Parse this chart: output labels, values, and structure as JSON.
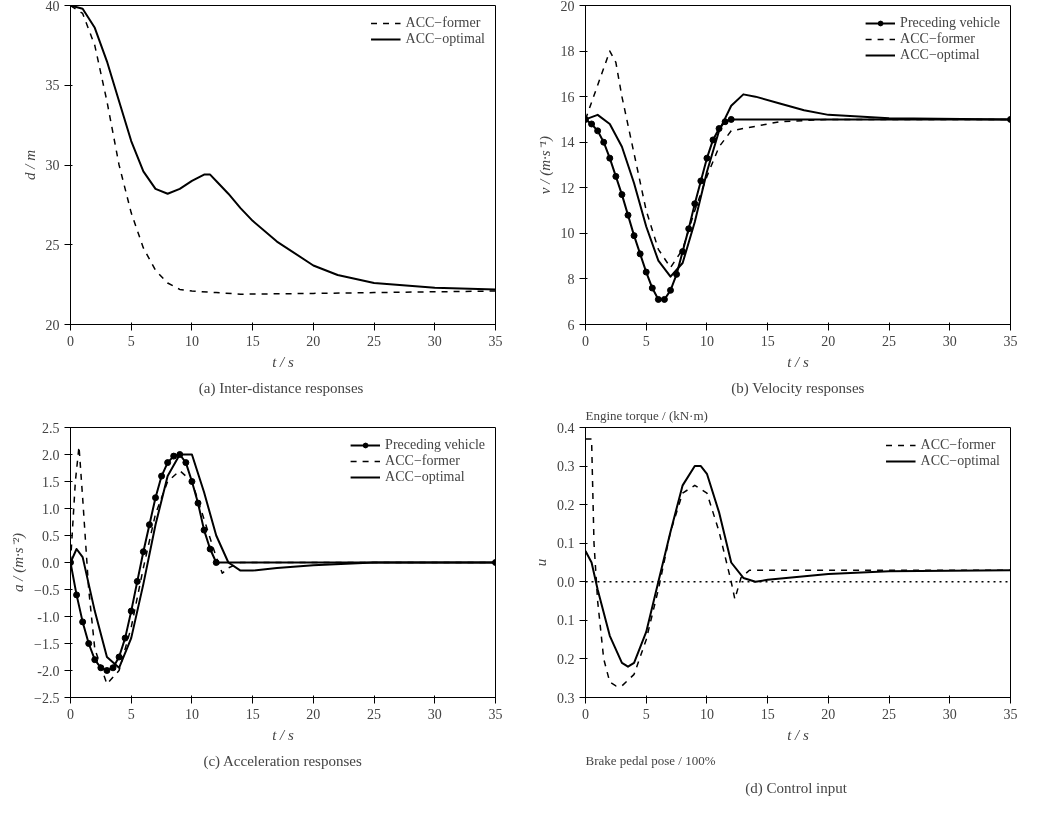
{
  "chart_data": [
    {
      "type": "line",
      "title": "(a)  Inter-distance responses",
      "xlabel": "t / s",
      "ylabel": "d / m",
      "xlim": [
        0,
        35
      ],
      "ylim": [
        20,
        40
      ],
      "xticks": [
        0,
        5,
        10,
        15,
        20,
        25,
        30,
        35
      ],
      "yticks": [
        20,
        25,
        30,
        35,
        40
      ],
      "legend": "top right",
      "grid": false,
      "series": [
        {
          "name": "ACC−former",
          "color": "#000000",
          "line_style": "dashed",
          "x": [
            0,
            1,
            2,
            3,
            4,
            5,
            6,
            7,
            8,
            9,
            10,
            12,
            14,
            20,
            25,
            30,
            35
          ],
          "values": [
            40,
            39.5,
            37.5,
            34,
            30,
            27,
            24.8,
            23.4,
            22.6,
            22.2,
            22.1,
            22,
            21.9,
            21.95,
            22,
            22.05,
            22.1
          ]
        },
        {
          "name": "ACC−optimal",
          "color": "#000000",
          "line_style": "solid",
          "x": [
            0,
            1,
            2,
            3,
            4,
            5,
            6,
            7,
            8,
            9,
            10,
            11,
            11.5,
            12,
            13,
            14,
            15,
            17,
            20,
            22,
            25,
            30,
            35
          ],
          "values": [
            40,
            39.8,
            38.6,
            36.5,
            34,
            31.5,
            29.6,
            28.5,
            28.2,
            28.5,
            29,
            29.4,
            29.4,
            29,
            28.2,
            27.3,
            26.5,
            25.2,
            23.7,
            23.1,
            22.6,
            22.3,
            22.2
          ]
        }
      ]
    },
    {
      "type": "line",
      "title": "(b) Velocity responses",
      "xlabel": "t / s",
      "ylabel": "v / (m·s⁻¹)",
      "xlim": [
        0,
        35
      ],
      "ylim": [
        6,
        20
      ],
      "xticks": [
        0,
        5,
        10,
        15,
        20,
        25,
        30,
        35
      ],
      "yticks": [
        6,
        8,
        10,
        12,
        14,
        16,
        18,
        20
      ],
      "legend": "top right",
      "grid": false,
      "series": [
        {
          "name": "Preceding vehicle",
          "color": "#000000",
          "line_style": "solid",
          "marker": "circle",
          "x": [
            0,
            0.5,
            1,
            1.5,
            2,
            2.5,
            3,
            3.5,
            4,
            4.5,
            5,
            5.5,
            6,
            6.5,
            7,
            7.5,
            8,
            8.5,
            9,
            9.5,
            10,
            10.5,
            11,
            11.5,
            12,
            35
          ],
          "values": [
            15,
            14.8,
            14.5,
            14,
            13.3,
            12.5,
            11.7,
            10.8,
            9.9,
            9.1,
            8.3,
            7.6,
            7.1,
            7.1,
            7.5,
            8.2,
            9.2,
            10.2,
            11.3,
            12.3,
            13.3,
            14.1,
            14.6,
            14.9,
            15,
            15
          ]
        },
        {
          "name": "ACC−former",
          "color": "#000000",
          "line_style": "dashed",
          "x": [
            0,
            1,
            2,
            2.5,
            3,
            4,
            5,
            6,
            7,
            8,
            9,
            10,
            11,
            12,
            14,
            16,
            20,
            35
          ],
          "values": [
            15,
            16.5,
            18,
            17.5,
            16,
            13.5,
            11,
            9.3,
            8.5,
            9.3,
            11,
            12.5,
            13.8,
            14.5,
            14.7,
            14.9,
            15,
            15
          ]
        },
        {
          "name": "ACC−optimal",
          "color": "#000000",
          "line_style": "solid",
          "x": [
            0,
            1,
            2,
            3,
            4,
            5,
            6,
            7,
            8,
            9,
            10,
            11,
            12,
            13,
            14,
            16,
            18,
            20,
            25,
            35
          ],
          "values": [
            15,
            15.2,
            14.8,
            13.8,
            12.2,
            10.3,
            8.8,
            8.1,
            8.7,
            10.5,
            12.7,
            14.5,
            15.6,
            16.1,
            16,
            15.7,
            15.4,
            15.2,
            15.05,
            15
          ]
        }
      ]
    },
    {
      "type": "line",
      "title": "(c) Acceleration responses",
      "xlabel": "t / s",
      "ylabel": "a / (m·s⁻²)",
      "xlim": [
        0,
        35
      ],
      "ylim": [
        -2.5,
        2.5
      ],
      "xticks": [
        0,
        5,
        10,
        15,
        20,
        25,
        30,
        35
      ],
      "yticks": [
        -2.5,
        {
          "value": -2,
          "label": "-2.0"
        },
        -1.5,
        {
          "value": -1,
          "label": "-1.0"
        },
        -0.5,
        {
          "value": 0,
          "label": "0.0"
        },
        0.5,
        {
          "value": 1,
          "label": "1.0"
        },
        1.5,
        {
          "value": 2,
          "label": "2.0"
        },
        2.5
      ],
      "legend": "top right",
      "grid": false,
      "series": [
        {
          "name": "Preceding vehicle",
          "color": "#000000",
          "line_style": "solid",
          "marker": "circle",
          "x": [
            0,
            0.5,
            1,
            1.5,
            2,
            2.5,
            3,
            3.5,
            4,
            4.5,
            5,
            5.5,
            6,
            6.5,
            7,
            7.5,
            8,
            8.5,
            9,
            9.5,
            10,
            10.5,
            11,
            11.5,
            12,
            35
          ],
          "values": [
            0,
            -0.6,
            -1.1,
            -1.5,
            -1.8,
            -1.95,
            -2,
            -1.95,
            -1.75,
            -1.4,
            -0.9,
            -0.35,
            0.2,
            0.7,
            1.2,
            1.6,
            1.85,
            1.97,
            2,
            1.85,
            1.5,
            1.1,
            0.6,
            0.25,
            0,
            0
          ]
        },
        {
          "name": "ACC−former",
          "color": "#000000",
          "line_style": "dashed",
          "x": [
            0,
            0.4,
            0.7,
            1,
            1.5,
            2,
            3,
            4,
            5,
            6,
            7,
            8,
            9,
            10,
            11,
            12,
            12.5,
            13,
            14,
            35
          ],
          "values": [
            0,
            1.5,
            2.15,
            1.2,
            -0.5,
            -1.6,
            -2.25,
            -2,
            -1.2,
            -0.1,
            0.9,
            1.5,
            1.7,
            1.5,
            0.8,
            0.1,
            -0.2,
            -0.1,
            0,
            0
          ]
        },
        {
          "name": "ACC−optimal",
          "color": "#000000",
          "line_style": "solid",
          "x": [
            0,
            0.5,
            1,
            2,
            3,
            4,
            5,
            6,
            7,
            8,
            9,
            10,
            11,
            12,
            13,
            14,
            15,
            17,
            20,
            25,
            35
          ],
          "values": [
            0,
            0.25,
            0.1,
            -0.9,
            -1.75,
            -1.95,
            -1.4,
            -0.4,
            0.7,
            1.6,
            2,
            2,
            1.3,
            0.5,
            0,
            -0.15,
            -0.15,
            -0.1,
            -0.05,
            0,
            0
          ]
        }
      ]
    },
    {
      "type": "line",
      "title": "(d)  Control input",
      "xlabel": "t / s",
      "ylabel": "u",
      "xlim": [
        0,
        35
      ],
      "ylim": [
        -0.3,
        0.4
      ],
      "xticks": [
        0,
        5,
        10,
        15,
        20,
        25,
        30,
        35
      ],
      "yticks": [
        {
          "value": -0.3,
          "label": "0.3"
        },
        {
          "value": -0.2,
          "label": "0.2"
        },
        {
          "value": -0.1,
          "label": "0.1"
        },
        {
          "value": 0,
          "label": "0.0"
        },
        0.1,
        0.2,
        0.3,
        0.4
      ],
      "legend": "top right",
      "grid": false,
      "annotations": [
        "Engine torque / (kN·m)",
        "Brake pedal pose / 100%"
      ],
      "ref_lines": [
        {
          "axis": "y",
          "value": 0,
          "color": "#000000",
          "line_style": "dotted"
        }
      ],
      "series": [
        {
          "name": "ACC−former",
          "color": "#000000",
          "line_style": "dashed",
          "x": [
            0,
            0.5,
            0.7,
            1,
            1.5,
            2,
            2.5,
            3,
            4,
            5,
            6,
            7,
            8,
            9,
            10,
            11,
            12,
            12.3,
            12.8,
            13.5,
            35
          ],
          "values": [
            0.37,
            0.37,
            0.1,
            -0.05,
            -0.2,
            -0.26,
            -0.27,
            -0.27,
            -0.24,
            -0.15,
            -0.02,
            0.13,
            0.23,
            0.25,
            0.23,
            0.13,
            0,
            -0.045,
            0.01,
            0.03,
            0.03
          ]
        },
        {
          "name": "ACC−optimal",
          "color": "#000000",
          "line_style": "solid",
          "x": [
            0,
            0.5,
            1,
            2,
            3,
            3.5,
            4,
            5,
            6,
            7,
            8,
            9,
            9.5,
            10,
            11,
            12,
            13,
            14,
            15,
            20,
            25,
            35
          ],
          "values": [
            0.08,
            0.05,
            -0.02,
            -0.14,
            -0.21,
            -0.22,
            -0.21,
            -0.13,
            0,
            0.13,
            0.25,
            0.3,
            0.3,
            0.28,
            0.18,
            0.05,
            0.01,
            0,
            0.005,
            0.02,
            0.027,
            0.03
          ]
        }
      ]
    }
  ]
}
